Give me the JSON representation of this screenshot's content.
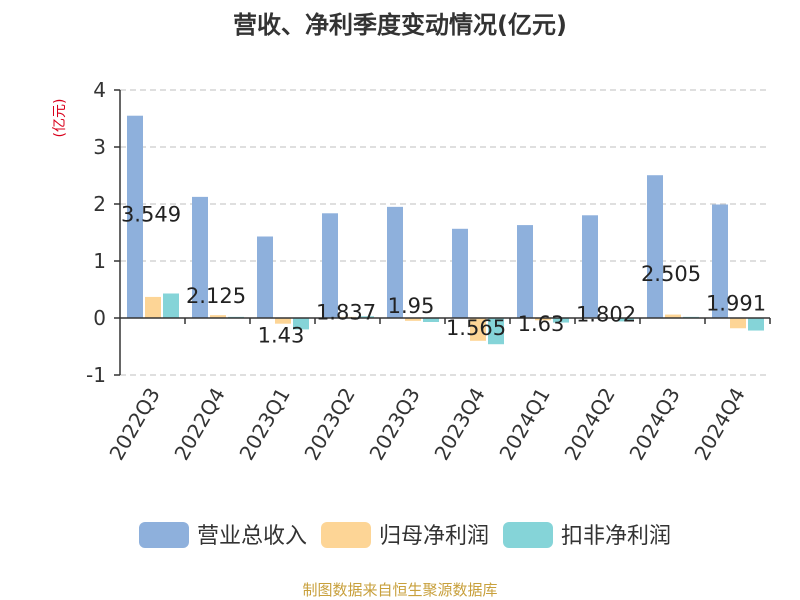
{
  "chart_data": {
    "type": "bar",
    "title": "营收、净利季度变动情况(亿元)",
    "ylabel": "(亿元)",
    "xlabel": "",
    "ylim": [
      -1,
      4
    ],
    "yticks": [
      -1,
      0,
      1,
      2,
      3,
      4
    ],
    "grid": true,
    "legend_position": "bottom",
    "categories": [
      "2022Q3",
      "2022Q4",
      "2023Q1",
      "2023Q2",
      "2023Q3",
      "2023Q4",
      "2024Q1",
      "2024Q2",
      "2024Q3",
      "2024Q4"
    ],
    "series": [
      {
        "name": "营业总收入",
        "color": "#8eb0dc",
        "values": [
          3.549,
          2.125,
          1.43,
          1.837,
          1.95,
          1.565,
          1.63,
          1.802,
          2.505,
          1.991
        ],
        "data_labels": [
          "3.549",
          "2.125",
          "1.43",
          "1.837",
          "1.95",
          "1.565",
          "1.63",
          "1.802",
          "2.505",
          "1.991"
        ]
      },
      {
        "name": "归母净利润",
        "color": "#fdd596",
        "values": [
          0.37,
          0.05,
          -0.1,
          0.02,
          -0.05,
          -0.4,
          -0.04,
          0.01,
          0.06,
          -0.18
        ]
      },
      {
        "name": "扣非净利润",
        "color": "#85d4d8",
        "values": [
          0.43,
          0.02,
          -0.2,
          0.03,
          -0.07,
          -0.46,
          -0.08,
          -0.06,
          0.02,
          -0.22
        ]
      }
    ],
    "source": "制图数据来自恒生聚源数据库"
  }
}
